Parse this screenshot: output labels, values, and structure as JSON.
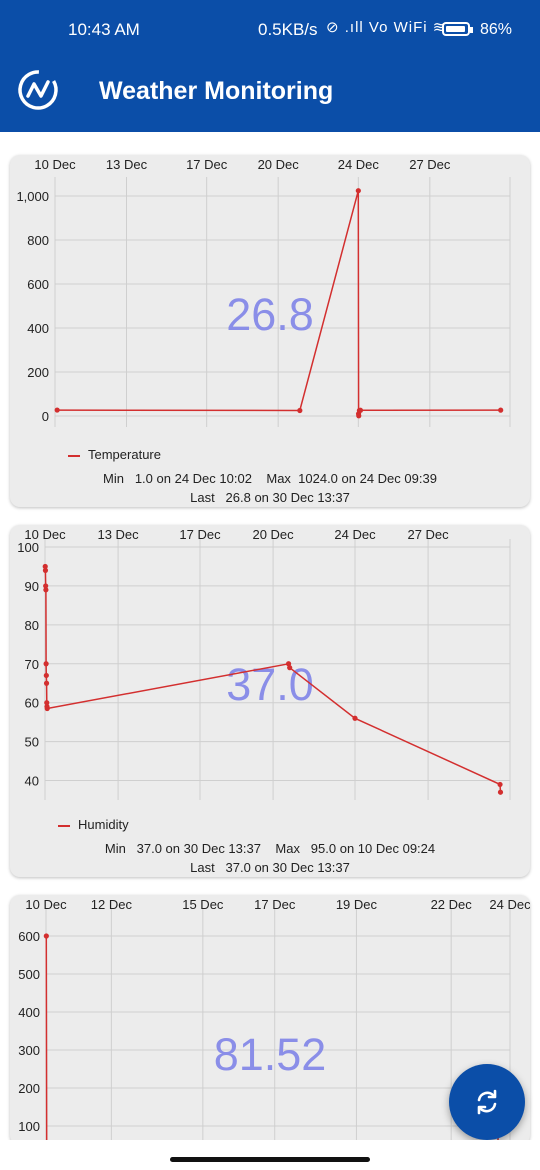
{
  "status_bar": {
    "time": "10:43 AM",
    "network_speed": "0.5KB/s",
    "status_icons": "⊘ .ıll Vo WiFi ≋",
    "battery": "86%"
  },
  "app_bar": {
    "title": "Weather Monitoring",
    "logo_icon": "wave-circle-logo-icon"
  },
  "colors": {
    "primary": "#0b4ea8",
    "series": "#d32f2f",
    "current_value": "#8a8ee8",
    "card": "#ececec"
  },
  "charts": [
    {
      "current_value": "26.8",
      "legend": "Temperature",
      "stats_line1": "Min   1.0 on 24 Dec 10:02    Max  1024.0 on 24 Dec 09:39",
      "stats_line2": "Last   26.8 on 30 Dec 13:37"
    },
    {
      "current_value": "37.0",
      "legend": "Humidity",
      "stats_line1": "Min   37.0 on 30 Dec 13:37    Max   95.0 on 10 Dec 09:24",
      "stats_line2": "Last   37.0 on 30 Dec 13:37"
    },
    {
      "current_value": "81.52"
    }
  ],
  "chart_data": [
    {
      "type": "line",
      "x_axis_position": "top",
      "x_ticks": [
        "10 Dec",
        "13 Dec",
        "17 Dec",
        "20 Dec",
        "24 Dec",
        "27 Dec"
      ],
      "x_tick_days": [
        10,
        13.3,
        17,
        20.3,
        24,
        27.3
      ],
      "xlim": [
        10,
        31
      ],
      "y_ticks": [
        "0",
        "200",
        "400",
        "600",
        "800",
        "1,000"
      ],
      "y_tick_values": [
        0,
        200,
        400,
        600,
        800,
        1000
      ],
      "ylim": [
        -50,
        1050
      ],
      "series": [
        {
          "name": "Temperature",
          "x": [
            10.1,
            21.3,
            24.0,
            24.01,
            24.02,
            24.05,
            24.1,
            30.57
          ],
          "y": [
            27,
            25,
            1024,
            10,
            1,
            25,
            26,
            26.8
          ]
        }
      ],
      "grid": true
    },
    {
      "type": "line",
      "x_axis_position": "top",
      "x_ticks": [
        "10 Dec",
        "13 Dec",
        "17 Dec",
        "20 Dec",
        "24 Dec",
        "27 Dec"
      ],
      "x_tick_days": [
        10,
        13.3,
        17,
        20.3,
        24,
        27.3
      ],
      "xlim": [
        10,
        31
      ],
      "y_ticks": [
        "40",
        "50",
        "60",
        "70",
        "80",
        "90",
        "100"
      ],
      "y_tick_values": [
        40,
        50,
        60,
        70,
        80,
        90,
        100
      ],
      "ylim": [
        35,
        100
      ],
      "series": [
        {
          "name": "Humidity",
          "x": [
            10.01,
            10.02,
            10.03,
            10.04,
            10.05,
            10.06,
            10.07,
            10.08,
            10.09,
            10.1,
            21.0,
            21.05,
            24.0,
            30.55,
            30.57
          ],
          "y": [
            95,
            94,
            90,
            89,
            70,
            67,
            65,
            60,
            59,
            58.5,
            70,
            69,
            56,
            39,
            37
          ]
        }
      ],
      "grid": true
    },
    {
      "type": "line",
      "x_axis_position": "top",
      "x_ticks": [
        "10 Dec",
        "12 Dec",
        "15 Dec",
        "17 Dec",
        "19 Dec",
        "22 Dec",
        "24 Dec"
      ],
      "x_tick_days": [
        10,
        12,
        14.8,
        17,
        19.5,
        22.4,
        24.2
      ],
      "xlim": [
        10,
        24.2
      ],
      "y_ticks": [
        "100",
        "200",
        "300",
        "400",
        "500",
        "600"
      ],
      "y_tick_values": [
        100,
        200,
        300,
        400,
        500,
        600
      ],
      "ylim": [
        50,
        650
      ],
      "series": [
        {
          "name": "",
          "x": [
            10.01,
            10.02,
            23.8,
            23.82,
            23.85,
            24.2
          ],
          "y": [
            600,
            55,
            35,
            40,
            100,
            100
          ]
        }
      ],
      "grid": true
    }
  ]
}
